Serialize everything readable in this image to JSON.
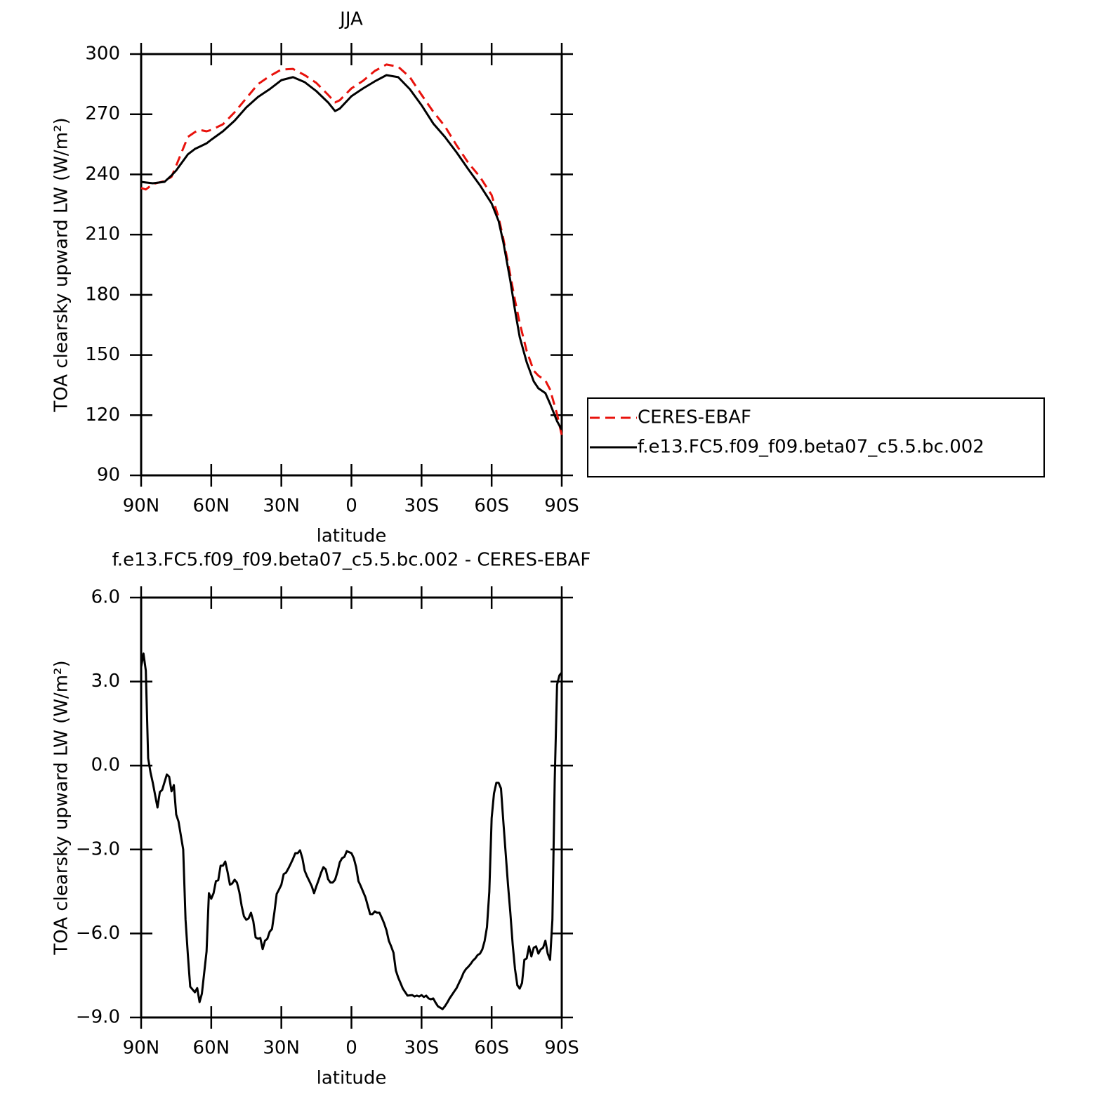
{
  "chart_data": [
    {
      "type": "line",
      "title": "JJA",
      "xlabel": "latitude",
      "ylabel": "TOA clearsky upward LW (W/m²)",
      "x": [
        90,
        88,
        85,
        80,
        77,
        75,
        70,
        67,
        65,
        62,
        60,
        55,
        50,
        45,
        40,
        35,
        30,
        25,
        20,
        15,
        10,
        7,
        5,
        0,
        -5,
        -10,
        -15,
        -20,
        -25,
        -30,
        -35,
        -40,
        -45,
        -50,
        -55,
        -60,
        -63,
        -65,
        -68,
        -70,
        -72,
        -75,
        -78,
        -80,
        -83,
        -85,
        -88,
        -90
      ],
      "series": [
        {
          "name": "CERES-EBAF",
          "color": "#e8120c",
          "dashed": true,
          "values": [
            233.2,
            232.5,
            235.2,
            236.7,
            238.8,
            244.4,
            258.7,
            261.1,
            262.2,
            261.5,
            262.2,
            265,
            271,
            278,
            285,
            289,
            292.3,
            292.6,
            289.5,
            285.6,
            279.7,
            275.9,
            277,
            282.9,
            286.7,
            291.6,
            294.8,
            293.7,
            288.5,
            279.7,
            271.3,
            264,
            254.5,
            245.8,
            238.8,
            229.7,
            218.5,
            208,
            189.8,
            177.2,
            166,
            152,
            142.2,
            139.7,
            137.3,
            132.8,
            120.5,
            110
          ]
        },
        {
          "name": "f.e13.FC5.f09_f09.beta07_c5.5.bc.002",
          "color": "#000000",
          "dashed": false,
          "values": [
            236.3,
            236.0,
            235.6,
            236.3,
            239.5,
            242,
            250,
            252.7,
            253.8,
            255.5,
            257.3,
            261.5,
            266.8,
            273.4,
            278.6,
            282.5,
            287,
            288.5,
            286,
            281.5,
            275.9,
            271.6,
            272.8,
            279,
            282.9,
            286.4,
            289.5,
            288.5,
            282.5,
            274.5,
            265.4,
            258.7,
            251,
            242.6,
            234.6,
            225.5,
            216.7,
            206.2,
            187,
            172.3,
            159,
            146.4,
            136.9,
            133.4,
            131,
            125.7,
            117,
            112.8
          ]
        }
      ],
      "xlim": [
        90,
        -90
      ],
      "xticks": [
        {
          "value": 90,
          "label": "90N"
        },
        {
          "value": 60,
          "label": "60N"
        },
        {
          "value": 30,
          "label": "30N"
        },
        0,
        {
          "value": -30,
          "label": "30S"
        },
        {
          "value": -60,
          "label": "60S"
        },
        {
          "value": -90,
          "label": "90S"
        }
      ],
      "ylim": [
        90,
        300
      ],
      "yticks": [
        90,
        120,
        150,
        180,
        210,
        240,
        270,
        300
      ],
      "legend": "right"
    },
    {
      "type": "line",
      "title": "f.e13.FC5.f09_f09.beta07_c5.5.bc.002 - CERES-EBAF",
      "xlabel": "latitude",
      "ylabel": "TOA clearsky upward LW (W/m²)",
      "x": [
        90,
        89,
        88,
        87,
        86,
        85,
        83,
        82,
        81,
        79,
        78,
        77,
        76,
        75,
        74,
        73,
        72,
        71,
        70,
        69,
        67,
        66,
        65,
        64,
        62,
        61,
        60,
        59,
        58,
        57,
        56,
        55,
        54,
        53,
        52,
        51,
        50,
        49,
        48,
        47,
        46,
        45,
        44,
        43,
        42,
        41,
        40,
        39,
        38,
        37,
        36,
        35,
        34,
        33,
        32,
        31,
        30,
        29,
        28,
        27,
        26,
        25,
        24,
        23,
        22,
        21,
        20,
        19,
        18,
        17,
        16,
        15,
        14,
        13,
        12,
        11,
        10,
        9,
        8,
        7,
        6,
        5,
        4,
        3,
        2,
        0,
        -1,
        -2,
        -3,
        -4,
        -5,
        -6,
        -7,
        -8,
        -9,
        -10,
        -11,
        -12,
        -13,
        -14,
        -15,
        -16,
        -17,
        -18,
        -19,
        -20,
        -22,
        -24,
        -26,
        -27,
        -28,
        -29,
        -30,
        -31,
        -32,
        -33,
        -34,
        -35,
        -36,
        -37,
        -38,
        -39,
        -40,
        -41,
        -42,
        -44,
        -45,
        -46,
        -47,
        -48,
        -49,
        -50,
        -51,
        -52,
        -53,
        -54,
        -55,
        -56,
        -57,
        -58,
        -59,
        -60,
        -61,
        -62,
        -63,
        -64,
        -65,
        -66,
        -67,
        -68,
        -69,
        -70,
        -71,
        -72,
        -73,
        -74,
        -75,
        -76,
        -77,
        -78,
        -79,
        -80,
        -81,
        -82,
        -83,
        -84,
        -85,
        -86,
        -87,
        -88,
        -89,
        -90
      ],
      "values": [
        3.52,
        4.0,
        3.39,
        0.26,
        -0.24,
        -0.62,
        -1.5,
        -0.95,
        -0.87,
        -0.32,
        -0.4,
        -0.92,
        -0.7,
        -1.75,
        -2.0,
        -2.5,
        -3.0,
        -5.5,
        -6.77,
        -7.9,
        -8.1,
        -7.95,
        -8.45,
        -8.15,
        -6.64,
        -4.56,
        -4.76,
        -4.56,
        -4.13,
        -4.1,
        -3.58,
        -3.58,
        -3.43,
        -3.81,
        -4.26,
        -4.21,
        -4.08,
        -4.18,
        -4.51,
        -5.01,
        -5.39,
        -5.51,
        -5.46,
        -5.26,
        -5.56,
        -6.14,
        -6.19,
        -6.16,
        -6.56,
        -6.26,
        -6.19,
        -5.94,
        -5.84,
        -5.26,
        -4.59,
        -4.43,
        -4.26,
        -3.88,
        -3.83,
        -3.68,
        -3.51,
        -3.33,
        -3.13,
        -3.13,
        -3.03,
        -3.31,
        -3.76,
        -3.96,
        -4.13,
        -4.31,
        -4.56,
        -4.31,
        -4.08,
        -3.83,
        -3.63,
        -3.71,
        -4.06,
        -4.18,
        -4.18,
        -4.08,
        -3.81,
        -3.46,
        -3.31,
        -3.26,
        -3.06,
        -3.13,
        -3.31,
        -3.63,
        -4.13,
        -4.31,
        -4.51,
        -4.71,
        -5.01,
        -5.31,
        -5.31,
        -5.21,
        -5.26,
        -5.26,
        -5.44,
        -5.64,
        -5.89,
        -6.26,
        -6.46,
        -6.69,
        -7.32,
        -7.57,
        -7.97,
        -8.22,
        -8.2,
        -8.25,
        -8.22,
        -8.25,
        -8.2,
        -8.27,
        -8.22,
        -8.32,
        -8.35,
        -8.32,
        -8.47,
        -8.6,
        -8.65,
        -8.7,
        -8.6,
        -8.47,
        -8.32,
        -8.07,
        -7.95,
        -7.77,
        -7.6,
        -7.4,
        -7.27,
        -7.19,
        -7.09,
        -6.97,
        -6.89,
        -6.77,
        -6.72,
        -6.57,
        -6.27,
        -5.77,
        -4.51,
        -1.88,
        -1.0,
        -0.62,
        -0.62,
        -0.82,
        -2.0,
        -3.13,
        -4.26,
        -5.26,
        -6.39,
        -7.27,
        -7.85,
        -7.97,
        -7.77,
        -6.94,
        -6.89,
        -6.46,
        -6.82,
        -6.51,
        -6.46,
        -6.72,
        -6.57,
        -6.51,
        -6.26,
        -6.72,
        -6.94,
        -5.51,
        -0.5,
        2.89,
        3.22,
        3.32
      ],
      "color": "#000000",
      "xlim": [
        90,
        -90
      ],
      "xticks": [
        {
          "value": 90,
          "label": "90N"
        },
        {
          "value": 60,
          "label": "60N"
        },
        {
          "value": 30,
          "label": "30N"
        },
        0,
        {
          "value": -30,
          "label": "30S"
        },
        {
          "value": -60,
          "label": "60S"
        },
        {
          "value": -90,
          "label": "90S"
        }
      ],
      "ylim": [
        -9,
        6
      ],
      "yticks": [
        {
          "value": -9,
          "label": "−9.0"
        },
        {
          "value": -6,
          "label": "−6.0"
        },
        {
          "value": -3,
          "label": "−3.0"
        },
        {
          "value": 0,
          "label": "0.0"
        },
        {
          "value": 3,
          "label": "3.0"
        },
        {
          "value": 6,
          "label": "6.0"
        }
      ]
    }
  ]
}
